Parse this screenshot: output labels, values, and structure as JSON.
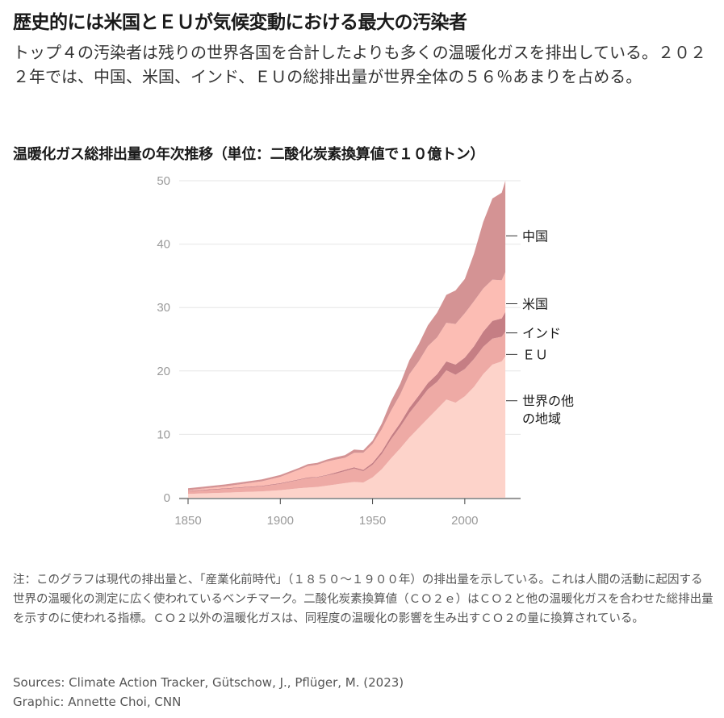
{
  "headline": "歴史的には米国とＥＵが気候変動における最大の汚染者",
  "dek": "トップ４の汚染者は残りの世界各国を合計したよりも多くの温暖化ガスを排出している。２０２２年では、中国、米国、インド、ＥＵの総排出量が世界全体の５６％あまりを占める。",
  "chart_title": "温暖化ガス総排出量の年次推移（単位：二酸化炭素換算値で１０億トン）",
  "note": "注：このグラフは現代の排出量と、「産業化前時代」（１８５０～１９００年）の排出量を示している。これは人間の活動に起因する世界の温暖化の測定に広く使われているベンチマーク。二酸化炭素換算値（ＣＯ２ｅ）はＣＯ２と他の温暖化ガスを合わせた総排出量を示すのに使われる指標。ＣＯ２以外の温暖化ガスは、同程度の温暖化の影響を生み出すＣＯ２の量に換算されている。",
  "sources": "Sources: Climate Action Tracker, Gütschow, J., Pflüger, M. (2023)",
  "credit": "Graphic: Annette Choi, CNN",
  "chart_data": {
    "type": "area",
    "stacked": true,
    "x": [
      1850,
      1860,
      1870,
      1880,
      1890,
      1900,
      1910,
      1915,
      1920,
      1925,
      1930,
      1935,
      1940,
      1945,
      1950,
      1955,
      1960,
      1965,
      1970,
      1975,
      1980,
      1985,
      1990,
      1995,
      2000,
      2005,
      2010,
      2015,
      2020,
      2022
    ],
    "xticks": [
      1850,
      1900,
      1950,
      2000
    ],
    "yticks": [
      0,
      10,
      20,
      30,
      40,
      50
    ],
    "xlim": [
      1850,
      2025
    ],
    "ylim": [
      0,
      50
    ],
    "grid": "horizontal",
    "legend": "direct labels at right",
    "series": [
      {
        "name": "世界の他の地域",
        "color": "#fdd3ca",
        "values": [
          0.6,
          0.7,
          0.8,
          0.9,
          1.0,
          1.2,
          1.5,
          1.6,
          1.7,
          1.9,
          2.1,
          2.3,
          2.5,
          2.4,
          3.2,
          4.5,
          6.2,
          7.8,
          9.5,
          11.0,
          12.5,
          14.0,
          15.5,
          15.0,
          16.0,
          17.5,
          19.5,
          21.0,
          21.5,
          22.3
        ]
      },
      {
        "name": "ＥＵ",
        "color": "#eeaaa5",
        "values": [
          0.4,
          0.5,
          0.6,
          0.7,
          0.8,
          1.0,
          1.3,
          1.5,
          1.5,
          1.6,
          1.7,
          1.9,
          2.1,
          1.8,
          2.0,
          2.4,
          3.0,
          3.4,
          3.9,
          4.2,
          4.6,
          4.3,
          4.6,
          4.4,
          4.3,
          4.4,
          4.3,
          4.1,
          3.9,
          3.9
        ]
      },
      {
        "name": "インド",
        "color": "#c57e84",
        "values": [
          0.1,
          0.1,
          0.1,
          0.1,
          0.1,
          0.1,
          0.1,
          0.1,
          0.1,
          0.1,
          0.2,
          0.2,
          0.2,
          0.2,
          0.3,
          0.4,
          0.5,
          0.6,
          0.8,
          0.9,
          1.0,
          1.2,
          1.4,
          1.6,
          1.8,
          2.0,
          2.4,
          2.8,
          2.9,
          3.1
        ]
      },
      {
        "name": "米国",
        "color": "#fcbdb4",
        "values": [
          0.1,
          0.2,
          0.3,
          0.5,
          0.7,
          1.0,
          1.5,
          1.8,
          1.9,
          2.1,
          2.0,
          1.9,
          2.3,
          2.7,
          3.0,
          3.5,
          4.0,
          4.5,
          5.3,
          5.4,
          5.8,
          5.8,
          6.1,
          6.4,
          7.0,
          7.1,
          6.8,
          6.5,
          6.0,
          6.3
        ]
      },
      {
        "name": "中国",
        "color": "#d49394",
        "values": [
          0.3,
          0.3,
          0.3,
          0.3,
          0.3,
          0.3,
          0.3,
          0.3,
          0.3,
          0.3,
          0.4,
          0.4,
          0.5,
          0.4,
          0.5,
          0.9,
          1.5,
          1.7,
          2.2,
          2.7,
          3.3,
          3.9,
          4.4,
          5.3,
          5.4,
          7.5,
          10.5,
          12.8,
          13.8,
          14.4
        ]
      }
    ],
    "labels": [
      {
        "text": "中国",
        "y": 41.3
      },
      {
        "text": "米国",
        "y": 30.6
      },
      {
        "text": "インド",
        "y": 26.0
      },
      {
        "text": "ＥＵ",
        "y": 22.6
      },
      {
        "text": "世界の他\nの地域",
        "y": 15.3
      }
    ]
  }
}
